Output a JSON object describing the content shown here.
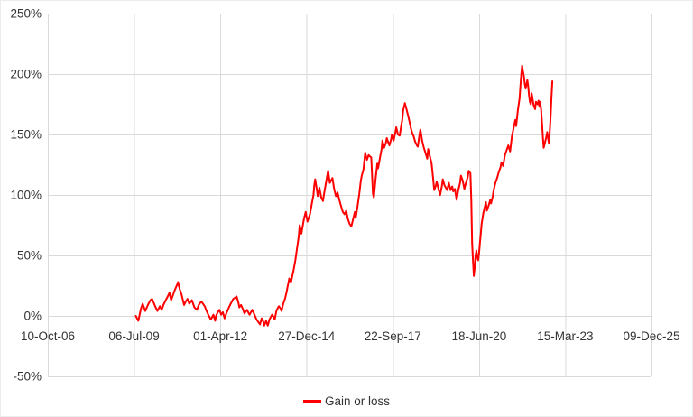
{
  "colors": {
    "line": "#FF0000",
    "grid": "#D9D9D9",
    "text": "#333333",
    "background": "#FFFFFF"
  },
  "legend": {
    "label": "Gain or loss"
  },
  "chart_data": {
    "type": "line",
    "title": "",
    "grid": true,
    "legend_position": "bottom-center",
    "x_axis": {
      "tick_labels": [
        "10-Oct-06",
        "06-Jul-09",
        "01-Apr-12",
        "27-Dec-14",
        "22-Sep-17",
        "18-Jun-20",
        "15-Mar-23",
        "09-Dec-25"
      ],
      "x_unit": "tick-interval index (0 = 10-Oct-06 ... 7 = 09-Dec-25, even spacing)"
    },
    "y_axis": {
      "tick_labels": [
        "250%",
        "200%",
        "150%",
        "100%",
        "50%",
        "0%",
        "-50%"
      ],
      "tick_values": [
        250,
        200,
        150,
        100,
        50,
        0,
        -50
      ],
      "min": -50,
      "max": 250,
      "unit": "percent"
    },
    "series": [
      {
        "name": "Gain or loss",
        "color": "#FF0000",
        "points": [
          [
            1.02,
            0
          ],
          [
            1.05,
            -4
          ],
          [
            1.08,
            6
          ],
          [
            1.1,
            10
          ],
          [
            1.13,
            4
          ],
          [
            1.16,
            9
          ],
          [
            1.19,
            13
          ],
          [
            1.21,
            14
          ],
          [
            1.25,
            7
          ],
          [
            1.27,
            4
          ],
          [
            1.3,
            8
          ],
          [
            1.32,
            5
          ],
          [
            1.34,
            9
          ],
          [
            1.36,
            12
          ],
          [
            1.39,
            16
          ],
          [
            1.41,
            19
          ],
          [
            1.43,
            13
          ],
          [
            1.47,
            21
          ],
          [
            1.5,
            26
          ],
          [
            1.51,
            28
          ],
          [
            1.53,
            22
          ],
          [
            1.55,
            18
          ],
          [
            1.58,
            9
          ],
          [
            1.6,
            12
          ],
          [
            1.62,
            14
          ],
          [
            1.64,
            10
          ],
          [
            1.67,
            13
          ],
          [
            1.7,
            7
          ],
          [
            1.73,
            5
          ],
          [
            1.75,
            9
          ],
          [
            1.78,
            12
          ],
          [
            1.8,
            10
          ],
          [
            1.82,
            8
          ],
          [
            1.84,
            4
          ],
          [
            1.86,
            1
          ],
          [
            1.89,
            -3
          ],
          [
            1.92,
            1
          ],
          [
            1.94,
            -4
          ],
          [
            1.95,
            0
          ],
          [
            1.97,
            3
          ],
          [
            1.99,
            5
          ],
          [
            2.01,
            1
          ],
          [
            2.03,
            3
          ],
          [
            2.05,
            -2
          ],
          [
            2.07,
            2
          ],
          [
            2.1,
            7
          ],
          [
            2.12,
            10
          ],
          [
            2.15,
            14
          ],
          [
            2.17,
            15
          ],
          [
            2.19,
            16
          ],
          [
            2.21,
            11
          ],
          [
            2.22,
            7
          ],
          [
            2.24,
            9
          ],
          [
            2.26,
            6
          ],
          [
            2.28,
            2
          ],
          [
            2.3,
            4
          ],
          [
            2.31,
            5
          ],
          [
            2.33,
            2
          ],
          [
            2.34,
            1
          ],
          [
            2.37,
            5
          ],
          [
            2.39,
            2
          ],
          [
            2.42,
            -3
          ],
          [
            2.44,
            -5
          ],
          [
            2.46,
            -7
          ],
          [
            2.48,
            -2
          ],
          [
            2.5,
            -5
          ],
          [
            2.51,
            -8
          ],
          [
            2.53,
            -4
          ],
          [
            2.55,
            -8
          ],
          [
            2.57,
            -3
          ],
          [
            2.6,
            1
          ],
          [
            2.62,
            -1
          ],
          [
            2.63,
            -3
          ],
          [
            2.65,
            4
          ],
          [
            2.67,
            7
          ],
          [
            2.68,
            8
          ],
          [
            2.7,
            6
          ],
          [
            2.71,
            4
          ],
          [
            2.73,
            10
          ],
          [
            2.75,
            14
          ],
          [
            2.77,
            20
          ],
          [
            2.78,
            24
          ],
          [
            2.8,
            31
          ],
          [
            2.82,
            28
          ],
          [
            2.85,
            38
          ],
          [
            2.87,
            46
          ],
          [
            2.89,
            56
          ],
          [
            2.91,
            66
          ],
          [
            2.92,
            75
          ],
          [
            2.94,
            68
          ],
          [
            2.97,
            80
          ],
          [
            2.99,
            86
          ],
          [
            3.01,
            78
          ],
          [
            3.04,
            84
          ],
          [
            3.06,
            92
          ],
          [
            3.08,
            100
          ],
          [
            3.09,
            108
          ],
          [
            3.1,
            113
          ],
          [
            3.12,
            104
          ],
          [
            3.13,
            99
          ],
          [
            3.15,
            106
          ],
          [
            3.17,
            98
          ],
          [
            3.19,
            95
          ],
          [
            3.21,
            104
          ],
          [
            3.23,
            112
          ],
          [
            3.25,
            120
          ],
          [
            3.27,
            110
          ],
          [
            3.3,
            114
          ],
          [
            3.32,
            105
          ],
          [
            3.34,
            99
          ],
          [
            3.36,
            102
          ],
          [
            3.38,
            96
          ],
          [
            3.4,
            91
          ],
          [
            3.42,
            86
          ],
          [
            3.44,
            84
          ],
          [
            3.46,
            87
          ],
          [
            3.48,
            80
          ],
          [
            3.5,
            76
          ],
          [
            3.52,
            74
          ],
          [
            3.54,
            80
          ],
          [
            3.56,
            86
          ],
          [
            3.57,
            81
          ],
          [
            3.59,
            90
          ],
          [
            3.61,
            100
          ],
          [
            3.63,
            112
          ],
          [
            3.64,
            116
          ],
          [
            3.66,
            121
          ],
          [
            3.68,
            135
          ],
          [
            3.7,
            129
          ],
          [
            3.72,
            133
          ],
          [
            3.75,
            131
          ],
          [
            3.77,
            101
          ],
          [
            3.78,
            98
          ],
          [
            3.8,
            113
          ],
          [
            3.82,
            126
          ],
          [
            3.83,
            122
          ],
          [
            3.85,
            130
          ],
          [
            3.87,
            138
          ],
          [
            3.88,
            145
          ],
          [
            3.9,
            139
          ],
          [
            3.92,
            143
          ],
          [
            3.93,
            147
          ],
          [
            3.96,
            141
          ],
          [
            3.98,
            146
          ],
          [
            3.99,
            150
          ],
          [
            4.01,
            145
          ],
          [
            4.03,
            152
          ],
          [
            4.04,
            156
          ],
          [
            4.06,
            150
          ],
          [
            4.08,
            149
          ],
          [
            4.1,
            158
          ],
          [
            4.11,
            162
          ],
          [
            4.12,
            170
          ],
          [
            4.14,
            176
          ],
          [
            4.17,
            168
          ],
          [
            4.19,
            162
          ],
          [
            4.21,
            155
          ],
          [
            4.23,
            150
          ],
          [
            4.24,
            149
          ],
          [
            4.26,
            144
          ],
          [
            4.28,
            141
          ],
          [
            4.29,
            140
          ],
          [
            4.31,
            150
          ],
          [
            4.32,
            154
          ],
          [
            4.34,
            145
          ],
          [
            4.36,
            139
          ],
          [
            4.37,
            137
          ],
          [
            4.4,
            130
          ],
          [
            4.41,
            138
          ],
          [
            4.43,
            132
          ],
          [
            4.45,
            126
          ],
          [
            4.47,
            112
          ],
          [
            4.48,
            104
          ],
          [
            4.5,
            108
          ],
          [
            4.51,
            111
          ],
          [
            4.53,
            105
          ],
          [
            4.55,
            100
          ],
          [
            4.57,
            108
          ],
          [
            4.58,
            113
          ],
          [
            4.6,
            108
          ],
          [
            4.63,
            104
          ],
          [
            4.65,
            110
          ],
          [
            4.67,
            104
          ],
          [
            4.69,
            107
          ],
          [
            4.7,
            103
          ],
          [
            4.72,
            105
          ],
          [
            4.74,
            96
          ],
          [
            4.76,
            104
          ],
          [
            4.78,
            110
          ],
          [
            4.79,
            116
          ],
          [
            4.81,
            112
          ],
          [
            4.83,
            105
          ],
          [
            4.84,
            108
          ],
          [
            4.87,
            115
          ],
          [
            4.88,
            120
          ],
          [
            4.9,
            118
          ],
          [
            4.91,
            95
          ],
          [
            4.92,
            60
          ],
          [
            4.93,
            45
          ],
          [
            4.94,
            33
          ],
          [
            4.95,
            40
          ],
          [
            4.96,
            50
          ],
          [
            4.97,
            54
          ],
          [
            4.98,
            48
          ],
          [
            4.99,
            46
          ],
          [
            5.0,
            52
          ],
          [
            5.01,
            60
          ],
          [
            5.02,
            68
          ],
          [
            5.03,
            76
          ],
          [
            5.05,
            85
          ],
          [
            5.08,
            94
          ],
          [
            5.09,
            87
          ],
          [
            5.11,
            91
          ],
          [
            5.13,
            96
          ],
          [
            5.14,
            93
          ],
          [
            5.16,
            99
          ],
          [
            5.17,
            104
          ],
          [
            5.19,
            110
          ],
          [
            5.21,
            114
          ],
          [
            5.23,
            119
          ],
          [
            5.25,
            123
          ],
          [
            5.26,
            127
          ],
          [
            5.28,
            124
          ],
          [
            5.3,
            133
          ],
          [
            5.33,
            139
          ],
          [
            5.34,
            141
          ],
          [
            5.36,
            136
          ],
          [
            5.38,
            148
          ],
          [
            5.4,
            155
          ],
          [
            5.42,
            162
          ],
          [
            5.43,
            157
          ],
          [
            5.45,
            170
          ],
          [
            5.47,
            180
          ],
          [
            5.48,
            190
          ],
          [
            5.49,
            200
          ],
          [
            5.5,
            207
          ],
          [
            5.51,
            202
          ],
          [
            5.52,
            198
          ],
          [
            5.53,
            192
          ],
          [
            5.54,
            188
          ],
          [
            5.56,
            195
          ],
          [
            5.57,
            190
          ],
          [
            5.58,
            182
          ],
          [
            5.59,
            177
          ],
          [
            5.6,
            175
          ],
          [
            5.61,
            184
          ],
          [
            5.62,
            180
          ],
          [
            5.63,
            175
          ],
          [
            5.65,
            171
          ],
          [
            5.66,
            177
          ],
          [
            5.68,
            175
          ],
          [
            5.69,
            178
          ],
          [
            5.7,
            173
          ],
          [
            5.71,
            177
          ],
          [
            5.72,
            170
          ],
          [
            5.73,
            160
          ],
          [
            5.74,
            148
          ],
          [
            5.75,
            139
          ],
          [
            5.76,
            142
          ],
          [
            5.78,
            148
          ],
          [
            5.79,
            152
          ],
          [
            5.8,
            147
          ],
          [
            5.81,
            143
          ],
          [
            5.82,
            152
          ],
          [
            5.83,
            165
          ],
          [
            5.84,
            180
          ],
          [
            5.85,
            194
          ]
        ]
      }
    ]
  }
}
